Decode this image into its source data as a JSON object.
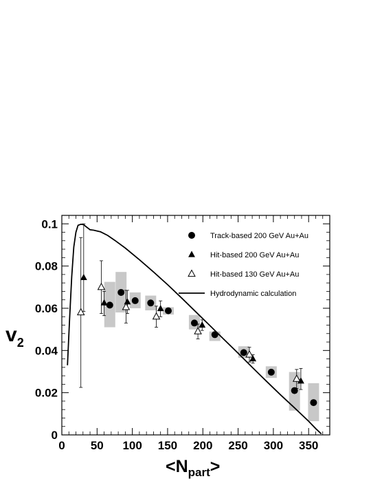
{
  "chart_data": {
    "type": "scatter",
    "xlabel": "<N",
    "xlabel_sub": "part",
    "xlabel_end": ">",
    "ylabel": "v",
    "ylabel_sub": "2",
    "xlim": [
      0,
      380
    ],
    "ylim": [
      0,
      0.104
    ],
    "x_ticks": [
      0,
      50,
      100,
      150,
      200,
      250,
      300,
      350
    ],
    "x_tick_labels": [
      "0",
      "50",
      "100",
      "150",
      "200",
      "250",
      "300",
      "350"
    ],
    "y_ticks": [
      0,
      0.02,
      0.04,
      0.06,
      0.08,
      0.1
    ],
    "y_tick_labels": [
      "0",
      "0.02",
      "0.04",
      "0.06",
      "0.08",
      "0.1"
    ],
    "legend_position": "top-right",
    "series": [
      {
        "name": "Track-based 200 GeV Au+Au",
        "marker": "filled-circle",
        "x": [
          68,
          84,
          104,
          126,
          151,
          188,
          217,
          258,
          297,
          330,
          357
        ],
        "y": [
          0.0615,
          0.0675,
          0.0636,
          0.0625,
          0.0588,
          0.053,
          0.0475,
          0.039,
          0.0297,
          0.021,
          0.0153
        ],
        "sys_low": [
          0.051,
          0.058,
          0.06,
          0.059,
          0.057,
          0.05,
          0.0445,
          0.0365,
          0.027,
          0.0115,
          0.0065
        ],
        "sys_high": [
          0.0725,
          0.0772,
          0.0675,
          0.066,
          0.0605,
          0.0568,
          0.049,
          0.042,
          0.0325,
          0.0298,
          0.0245
        ]
      },
      {
        "name": "Hit-based 200 GeV Au+Au",
        "marker": "filled-triangle",
        "x": [
          31,
          60,
          93,
          140,
          199,
          271,
          339
        ],
        "y": [
          0.0745,
          0.0625,
          0.063,
          0.0598,
          0.052,
          0.036,
          0.0255
        ],
        "err_low": [
          0.0585,
          0.0565,
          0.0575,
          0.056,
          0.0495,
          0.034,
          0.0215
        ],
        "err_high": [
          0.1,
          0.068,
          0.0685,
          0.0635,
          0.0545,
          0.038,
          0.0315
        ]
      },
      {
        "name": "Hit-based 130 GeV Au+Au",
        "marker": "open-triangle",
        "x": [
          27,
          56,
          91,
          134,
          193,
          266,
          333
        ],
        "y": [
          0.058,
          0.07,
          0.0605,
          0.056,
          0.049,
          0.038,
          0.0265
        ],
        "err_low": [
          0.0225,
          0.0575,
          0.053,
          0.051,
          0.0455,
          0.0345,
          0.022
        ],
        "err_high": [
          0.0935,
          0.0825,
          0.0685,
          0.061,
          0.0525,
          0.0415,
          0.031
        ]
      },
      {
        "name": "Hydrodynamic calculation",
        "marker": "line",
        "x": [
          8,
          11,
          14,
          17,
          20,
          23,
          27,
          31,
          35,
          40,
          45,
          55,
          65,
          75,
          90,
          110,
          130,
          150,
          170,
          190,
          210,
          230,
          250,
          270,
          290,
          310,
          330,
          350,
          360,
          368
        ],
        "y": [
          0.033,
          0.055,
          0.075,
          0.089,
          0.096,
          0.0993,
          0.0998,
          0.0996,
          0.0985,
          0.0972,
          0.097,
          0.0962,
          0.0945,
          0.0922,
          0.0885,
          0.083,
          0.0772,
          0.0712,
          0.0648,
          0.0583,
          0.0518,
          0.0452,
          0.0387,
          0.032,
          0.0255,
          0.019,
          0.0128,
          0.0065,
          0.003,
          0.0005
        ]
      }
    ]
  }
}
